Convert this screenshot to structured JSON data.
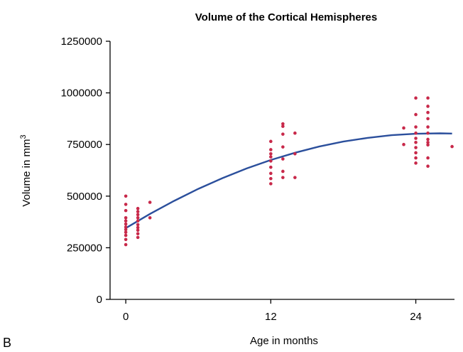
{
  "chart_data": {
    "type": "scatter",
    "title": "Volume of the Cortical Hemispheres",
    "xlabel": "Age in months",
    "ylabel": "Volume in mm",
    "ylabel_superscript": "3",
    "panel_label": "B",
    "xlim": [
      -1.3,
      27.2
    ],
    "ylim": [
      0,
      1250000
    ],
    "x_ticks": [
      0,
      12,
      24
    ],
    "x_tick_labels": [
      "0",
      "12",
      "24"
    ],
    "y_ticks": [
      0,
      250000,
      500000,
      750000,
      1000000,
      1250000
    ],
    "y_tick_labels": [
      "0",
      "250000",
      "500000",
      "750000",
      "1000000",
      "1250000"
    ],
    "grid": false,
    "point_color": "#c8294a",
    "curve_color": "#2b4f9c",
    "points": [
      {
        "x": 0,
        "y": 500000
      },
      {
        "x": 0,
        "y": 460000
      },
      {
        "x": 0,
        "y": 430000
      },
      {
        "x": 0,
        "y": 395000
      },
      {
        "x": 0,
        "y": 380000
      },
      {
        "x": 0,
        "y": 365000
      },
      {
        "x": 0,
        "y": 350000
      },
      {
        "x": 0,
        "y": 338000
      },
      {
        "x": 0,
        "y": 325000
      },
      {
        "x": 0,
        "y": 310000
      },
      {
        "x": 0,
        "y": 290000
      },
      {
        "x": 0,
        "y": 265000
      },
      {
        "x": 1,
        "y": 440000
      },
      {
        "x": 1,
        "y": 425000
      },
      {
        "x": 1,
        "y": 410000
      },
      {
        "x": 1,
        "y": 395000
      },
      {
        "x": 1,
        "y": 380000
      },
      {
        "x": 1,
        "y": 362000
      },
      {
        "x": 1,
        "y": 348000
      },
      {
        "x": 1,
        "y": 335000
      },
      {
        "x": 1,
        "y": 318000
      },
      {
        "x": 1,
        "y": 300000
      },
      {
        "x": 2,
        "y": 470000
      },
      {
        "x": 2,
        "y": 395000
      },
      {
        "x": 12,
        "y": 765000
      },
      {
        "x": 12,
        "y": 725000
      },
      {
        "x": 12,
        "y": 705000
      },
      {
        "x": 12,
        "y": 690000
      },
      {
        "x": 12,
        "y": 670000
      },
      {
        "x": 12,
        "y": 640000
      },
      {
        "x": 12,
        "y": 610000
      },
      {
        "x": 12,
        "y": 585000
      },
      {
        "x": 12,
        "y": 560000
      },
      {
        "x": 13,
        "y": 850000
      },
      {
        "x": 13,
        "y": 838000
      },
      {
        "x": 13,
        "y": 800000
      },
      {
        "x": 13,
        "y": 738000
      },
      {
        "x": 13,
        "y": 680000
      },
      {
        "x": 13,
        "y": 620000
      },
      {
        "x": 13,
        "y": 590000
      },
      {
        "x": 14,
        "y": 805000
      },
      {
        "x": 14,
        "y": 705000
      },
      {
        "x": 14,
        "y": 590000
      },
      {
        "x": 23,
        "y": 830000
      },
      {
        "x": 23,
        "y": 750000
      },
      {
        "x": 24,
        "y": 975000
      },
      {
        "x": 24,
        "y": 895000
      },
      {
        "x": 24,
        "y": 835000
      },
      {
        "x": 24,
        "y": 805000
      },
      {
        "x": 24,
        "y": 780000
      },
      {
        "x": 24,
        "y": 760000
      },
      {
        "x": 24,
        "y": 735000
      },
      {
        "x": 24,
        "y": 710000
      },
      {
        "x": 24,
        "y": 685000
      },
      {
        "x": 24,
        "y": 660000
      },
      {
        "x": 25,
        "y": 975000
      },
      {
        "x": 25,
        "y": 935000
      },
      {
        "x": 25,
        "y": 905000
      },
      {
        "x": 25,
        "y": 875000
      },
      {
        "x": 25,
        "y": 835000
      },
      {
        "x": 25,
        "y": 805000
      },
      {
        "x": 25,
        "y": 775000
      },
      {
        "x": 25,
        "y": 760000
      },
      {
        "x": 25,
        "y": 748000
      },
      {
        "x": 25,
        "y": 685000
      },
      {
        "x": 25,
        "y": 645000
      },
      {
        "x": 27,
        "y": 740000
      }
    ],
    "fit_curve": {
      "x": [
        0,
        2,
        4,
        6,
        8,
        10,
        12,
        14,
        16,
        18,
        20,
        22,
        24,
        26,
        27
      ],
      "y": [
        345000,
        414000,
        477000,
        535000,
        587000,
        634000,
        675000,
        710000,
        740000,
        764000,
        782000,
        795000,
        802000,
        804000,
        803000
      ]
    }
  }
}
